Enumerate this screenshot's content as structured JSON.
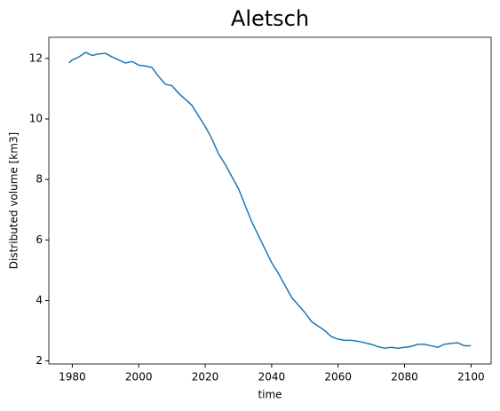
{
  "chart_data": {
    "type": "line",
    "title": "Aletsch",
    "xlabel": "time",
    "ylabel": "Distributed volume [km3]",
    "x": [
      1979,
      1980,
      1982,
      1984,
      1986,
      1988,
      1990,
      1992,
      1994,
      1996,
      1998,
      2000,
      2002,
      2004,
      2006,
      2008,
      2010,
      2012,
      2014,
      2016,
      2018,
      2020,
      2022,
      2024,
      2026,
      2028,
      2030,
      2032,
      2034,
      2036,
      2038,
      2040,
      2042,
      2044,
      2046,
      2048,
      2050,
      2052,
      2054,
      2056,
      2058,
      2060,
      2062,
      2064,
      2066,
      2068,
      2070,
      2072,
      2074,
      2076,
      2078,
      2080,
      2082,
      2084,
      2086,
      2088,
      2090,
      2092,
      2094,
      2096,
      2098,
      2100
    ],
    "series": [
      {
        "name": "Aletsch",
        "color": "#1f77b4",
        "values": [
          11.85,
          11.95,
          12.05,
          12.2,
          12.1,
          12.15,
          12.17,
          12.05,
          11.95,
          11.85,
          11.9,
          11.78,
          11.75,
          11.7,
          11.4,
          11.15,
          11.1,
          10.85,
          10.65,
          10.45,
          10.1,
          9.75,
          9.35,
          8.85,
          8.5,
          8.1,
          7.7,
          7.15,
          6.6,
          6.15,
          5.7,
          5.25,
          4.9,
          4.5,
          4.1,
          3.85,
          3.6,
          3.3,
          3.15,
          3.0,
          2.8,
          2.72,
          2.68,
          2.68,
          2.65,
          2.6,
          2.55,
          2.47,
          2.42,
          2.45,
          2.42,
          2.45,
          2.48,
          2.55,
          2.55,
          2.5,
          2.45,
          2.55,
          2.58,
          2.6,
          2.5,
          2.5
        ]
      }
    ],
    "xlim": [
      1972.95,
      2106.05
    ],
    "xticks": [
      1980,
      2000,
      2020,
      2040,
      2060,
      2080,
      2100
    ],
    "ylim": [
      1.9,
      12.7
    ],
    "yticks": [
      2,
      4,
      6,
      8,
      10,
      12
    ]
  }
}
